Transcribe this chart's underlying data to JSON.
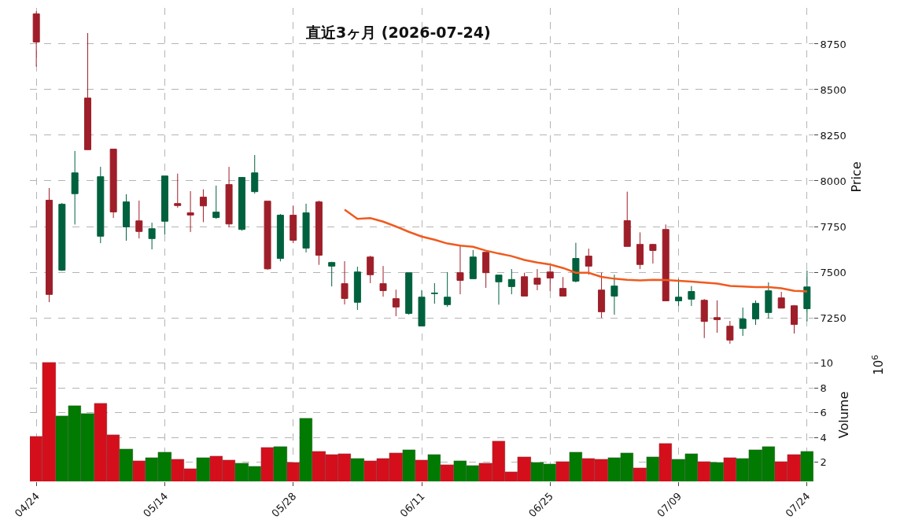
{
  "chart_data": [
    {
      "type": "candlestick",
      "title": "直近3ヶ月 (2026-07-24)",
      "ylabel": "Price",
      "grid": true,
      "tick_labels": "y",
      "ylim": [
        7095,
        8948
      ],
      "yticks": [
        7250,
        7500,
        7750,
        8000,
        8250,
        8500,
        8750
      ],
      "ohlc": [
        [
          8915,
          8930,
          8626,
          8761
        ],
        [
          7894,
          7961,
          7336,
          7378
        ],
        [
          7511,
          7879,
          7506,
          7872
        ],
        [
          7930,
          8164,
          7761,
          8044
        ],
        [
          8454,
          8810,
          8171,
          8171
        ],
        [
          7697,
          8077,
          7659,
          8023
        ],
        [
          8174,
          8174,
          7797,
          7830
        ],
        [
          7748,
          7927,
          7672,
          7885
        ],
        [
          7781,
          7892,
          7685,
          7723
        ],
        [
          7684,
          7771,
          7625,
          7738
        ],
        [
          7779,
          8027,
          7707,
          8027
        ],
        [
          7876,
          8040,
          7853,
          7865
        ],
        [
          7825,
          7944,
          7720,
          7813
        ],
        [
          7911,
          7954,
          7774,
          7863
        ],
        [
          7799,
          7974,
          7792,
          7829
        ],
        [
          7980,
          8077,
          7746,
          7764
        ],
        [
          7734,
          8019,
          7727,
          8019
        ],
        [
          7941,
          8142,
          7930,
          8044
        ],
        [
          7889,
          7889,
          7513,
          7518
        ],
        [
          7575,
          7819,
          7559,
          7812
        ],
        [
          7812,
          7865,
          7659,
          7675
        ],
        [
          7632,
          7875,
          7608,
          7825
        ],
        [
          7885,
          7892,
          7540,
          7593
        ],
        [
          7533,
          7557,
          7422,
          7553
        ],
        [
          7437,
          7560,
          7323,
          7356
        ],
        [
          7335,
          7530,
          7293,
          7501
        ],
        [
          7583,
          7590,
          7440,
          7486
        ],
        [
          7437,
          7534,
          7366,
          7399
        ],
        [
          7355,
          7404,
          7259,
          7309
        ],
        [
          7274,
          7497,
          7267,
          7497
        ],
        [
          7205,
          7402,
          7205,
          7363
        ],
        [
          7383,
          7440,
          7327,
          7385
        ],
        [
          7322,
          7500,
          7310,
          7363
        ],
        [
          7497,
          7649,
          7379,
          7455
        ],
        [
          7464,
          7621,
          7464,
          7583
        ],
        [
          7609,
          7609,
          7414,
          7497
        ],
        [
          7447,
          7484,
          7322,
          7484
        ],
        [
          7421,
          7517,
          7379,
          7460
        ],
        [
          7475,
          7497,
          7369,
          7369
        ],
        [
          7467,
          7517,
          7401,
          7434
        ],
        [
          7501,
          7534,
          7396,
          7468
        ],
        [
          7411,
          7473,
          7369,
          7369
        ],
        [
          7451,
          7661,
          7444,
          7575
        ],
        [
          7588,
          7629,
          7486,
          7533
        ],
        [
          7402,
          7497,
          7250,
          7283
        ],
        [
          7369,
          7486,
          7267,
          7424
        ],
        [
          7782,
          7941,
          7641,
          7641
        ],
        [
          7652,
          7718,
          7517,
          7542
        ],
        [
          7652,
          7655,
          7547,
          7619
        ],
        [
          7734,
          7761,
          7343,
          7343
        ],
        [
          7343,
          7463,
          7315,
          7363
        ],
        [
          7352,
          7424,
          7315,
          7394
        ],
        [
          7346,
          7353,
          7139,
          7230
        ],
        [
          7251,
          7345,
          7168,
          7240
        ],
        [
          7204,
          7233,
          7108,
          7128
        ],
        [
          7192,
          7306,
          7151,
          7243
        ],
        [
          7244,
          7345,
          7211,
          7329
        ],
        [
          7279,
          7444,
          7246,
          7398
        ],
        [
          7359,
          7392,
          7303,
          7303
        ],
        [
          7316,
          7320,
          7164,
          7214
        ],
        [
          7300,
          7509,
          7231,
          7419
        ]
      ],
      "colors": [
        "#9e1f29",
        "#9e1f29",
        "#00613e",
        "#00613e",
        "#9e1f29",
        "#00613e",
        "#9e1f29",
        "#00613e",
        "#9e1f29",
        "#00613e",
        "#00613e",
        "#9e1f29",
        "#9e1f29",
        "#9e1f29",
        "#00613e",
        "#9e1f29",
        "#00613e",
        "#00613e",
        "#9e1f29",
        "#00613e",
        "#9e1f29",
        "#00613e",
        "#9e1f29",
        "#00613e",
        "#9e1f29",
        "#00613e",
        "#9e1f29",
        "#9e1f29",
        "#9e1f29",
        "#00613e",
        "#00613e",
        "#00613e",
        "#00613e",
        "#9e1f29",
        "#00613e",
        "#9e1f29",
        "#00613e",
        "#00613e",
        "#9e1f29",
        "#9e1f29",
        "#9e1f29",
        "#9e1f29",
        "#00613e",
        "#9e1f29",
        "#9e1f29",
        "#00613e",
        "#9e1f29",
        "#9e1f29",
        "#9e1f29",
        "#9e1f29",
        "#00613e",
        "#00613e",
        "#9e1f29",
        "#9e1f29",
        "#9e1f29",
        "#00613e",
        "#00613e",
        "#00613e",
        "#9e1f29",
        "#9e1f29",
        "#00613e"
      ],
      "series": [
        {
          "type": "line",
          "color": "#f05a1e",
          "values": [
            null,
            null,
            null,
            null,
            null,
            null,
            null,
            null,
            null,
            null,
            null,
            null,
            null,
            null,
            null,
            null,
            null,
            null,
            null,
            null,
            null,
            null,
            null,
            null,
            7843,
            7792,
            7796,
            7777,
            7750,
            7721,
            7695,
            7678,
            7657,
            7646,
            7639,
            7618,
            7602,
            7588,
            7567,
            7553,
            7542,
            7523,
            7497,
            7497,
            7474,
            7464,
            7458,
            7455,
            7458,
            7457,
            7453,
            7448,
            7443,
            7438,
            7425,
            7421,
            7418,
            7418,
            7412,
            7398,
            7395
          ]
        }
      ]
    },
    {
      "type": "bar",
      "ylabel": "Volume",
      "annotations": [
        "10$^{6}$"
      ],
      "grid": true,
      "categories": [
        "04/24",
        null,
        null,
        null,
        null,
        null,
        null,
        null,
        null,
        null,
        "05/14",
        null,
        null,
        null,
        null,
        null,
        null,
        null,
        null,
        null,
        "05/28",
        null,
        null,
        null,
        null,
        null,
        null,
        null,
        null,
        null,
        "06/11",
        null,
        null,
        null,
        null,
        null,
        null,
        null,
        null,
        null,
        "06/25",
        null,
        null,
        null,
        null,
        null,
        null,
        null,
        null,
        null,
        "07/09",
        null,
        null,
        null,
        null,
        null,
        null,
        null,
        null,
        null,
        "07/24"
      ],
      "ylim": [
        0.46,
        11.2
      ],
      "yticks": [
        2,
        4,
        6,
        8,
        10
      ],
      "values": [
        4.11,
        10.08,
        5.71,
        6.59,
        5.92,
        6.78,
        4.23,
        3.05,
        2.11,
        2.36,
        2.8,
        2.23,
        1.49,
        2.36,
        2.48,
        2.17,
        1.94,
        1.68,
        3.18,
        3.28,
        2.0,
        5.54,
        2.86,
        2.61,
        2.67,
        2.29,
        2.11,
        2.29,
        2.74,
        2.99,
        2.17,
        2.61,
        1.81,
        2.11,
        1.75,
        1.94,
        3.73,
        1.24,
        2.42,
        1.98,
        1.87,
        2.04,
        2.8,
        2.29,
        2.23,
        2.36,
        2.74,
        1.56,
        2.42,
        3.54,
        2.23,
        2.67,
        2.04,
        1.98,
        2.36,
        2.29,
        2.99,
        3.28,
        2.04,
        2.61,
        2.86
      ],
      "colors": [
        "#d40f1b",
        "#d40f1b",
        "#007a00",
        "#007a00",
        "#007a00",
        "#d40f1b",
        "#d40f1b",
        "#007a00",
        "#d40f1b",
        "#007a00",
        "#007a00",
        "#d40f1b",
        "#d40f1b",
        "#007a00",
        "#d40f1b",
        "#d40f1b",
        "#007a00",
        "#007a00",
        "#d40f1b",
        "#007a00",
        "#d40f1b",
        "#007a00",
        "#d40f1b",
        "#d40f1b",
        "#d40f1b",
        "#007a00",
        "#d40f1b",
        "#d40f1b",
        "#d40f1b",
        "#007a00",
        "#d40f1b",
        "#007a00",
        "#d40f1b",
        "#007a00",
        "#007a00",
        "#d40f1b",
        "#d40f1b",
        "#d40f1b",
        "#d40f1b",
        "#007a00",
        "#007a00",
        "#d40f1b",
        "#007a00",
        "#d40f1b",
        "#d40f1b",
        "#007a00",
        "#007a00",
        "#d40f1b",
        "#007a00",
        "#d40f1b",
        "#007a00",
        "#007a00",
        "#d40f1b",
        "#007a00",
        "#d40f1b",
        "#007a00",
        "#007a00",
        "#007a00",
        "#d40f1b",
        "#d40f1b",
        "#007a00"
      ]
    }
  ]
}
